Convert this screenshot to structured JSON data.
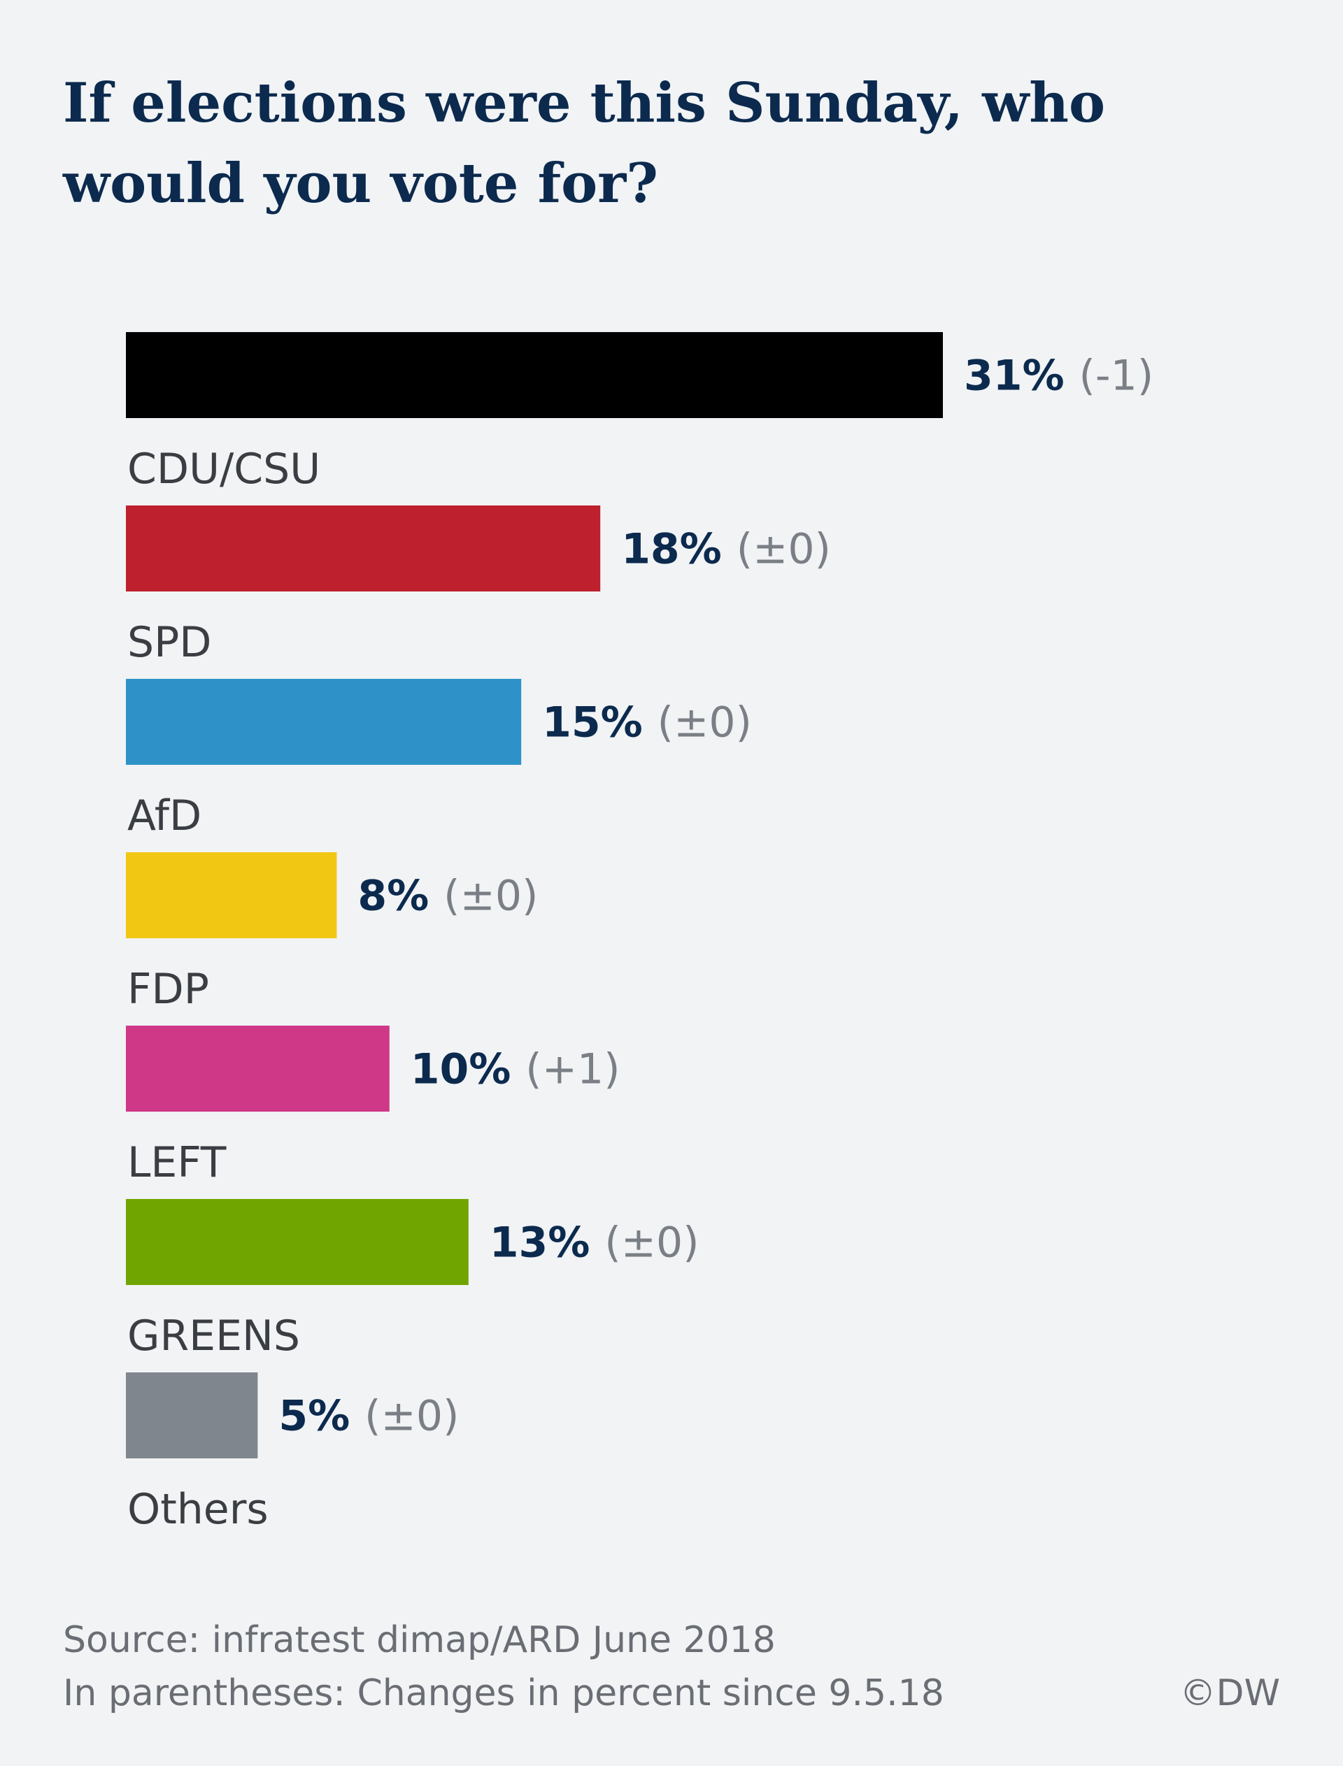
{
  "chart_data": {
    "type": "bar",
    "orientation": "horizontal",
    "title": "If elections were this Sunday, who would you vote for?",
    "categories": [
      "CDU/CSU",
      "SPD",
      "AfD",
      "FDP",
      "LEFT",
      "GREENS",
      "Others"
    ],
    "values": [
      31,
      18,
      15,
      8,
      10,
      13,
      5
    ],
    "value_labels": [
      "31%",
      "18%",
      "15%",
      "8%",
      "10%",
      "13%",
      "5%"
    ],
    "changes": [
      "(-1)",
      "(±0)",
      "(±0)",
      "(±0)",
      "(+1)",
      "(±0)",
      "(±0)"
    ],
    "colors": [
      "#000000",
      "#be202e",
      "#2e92c9",
      "#f1c713",
      "#cf3787",
      "#70a500",
      "#7f868d"
    ],
    "xlim": [
      0,
      31
    ],
    "grid": false,
    "legend": false
  },
  "footer": {
    "source": "Source: infratest dimap/ARD June 2018",
    "note": "In parentheses: Changes in percent since 9.5.18",
    "credit": "©DW"
  }
}
